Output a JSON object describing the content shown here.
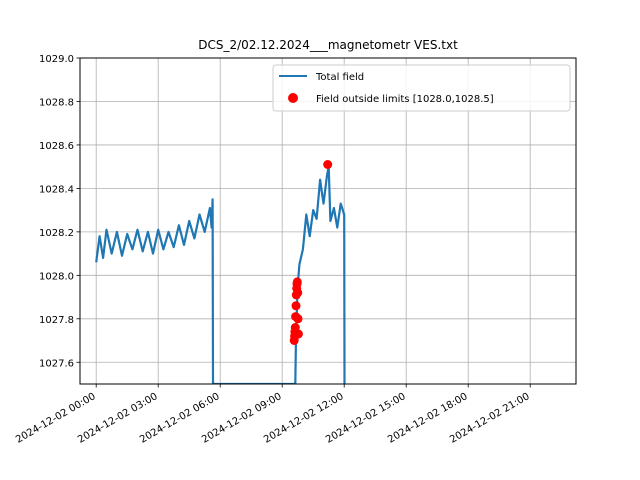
{
  "chart_data": {
    "type": "line",
    "title": "DCS_2/02.12.2024___magnetometr VES.txt",
    "xlabel": "",
    "ylabel": "",
    "xlim": [
      "2024-12-01 23:13",
      "2024-12-02 23:13"
    ],
    "ylim": [
      1027.5,
      1029.0
    ],
    "x_ticks": [
      "2024-12-02 00:00",
      "2024-12-02 03:00",
      "2024-12-02 06:00",
      "2024-12-02 09:00",
      "2024-12-02 12:00",
      "2024-12-02 15:00",
      "2024-12-02 18:00",
      "2024-12-02 21:00"
    ],
    "y_ticks": [
      "1027.6",
      "1027.8",
      "1028.0",
      "1028.2",
      "1028.4",
      "1028.6",
      "1028.8",
      "1029.0"
    ],
    "grid": true,
    "legend_position": "top-right",
    "series": [
      {
        "name": "Total field",
        "kind": "line",
        "color": "#1f77b4",
        "points": [
          [
            "2024-12-02 00:00",
            1028.06
          ],
          [
            "2024-12-02 00:10",
            1028.18
          ],
          [
            "2024-12-02 00:20",
            1028.08
          ],
          [
            "2024-12-02 00:30",
            1028.21
          ],
          [
            "2024-12-02 00:45",
            1028.1
          ],
          [
            "2024-12-02 01:00",
            1028.2
          ],
          [
            "2024-12-02 01:15",
            1028.09
          ],
          [
            "2024-12-02 01:30",
            1028.19
          ],
          [
            "2024-12-02 01:45",
            1028.12
          ],
          [
            "2024-12-02 02:00",
            1028.21
          ],
          [
            "2024-12-02 02:15",
            1028.11
          ],
          [
            "2024-12-02 02:30",
            1028.2
          ],
          [
            "2024-12-02 02:45",
            1028.1
          ],
          [
            "2024-12-02 03:00",
            1028.21
          ],
          [
            "2024-12-02 03:15",
            1028.12
          ],
          [
            "2024-12-02 03:30",
            1028.2
          ],
          [
            "2024-12-02 03:45",
            1028.13
          ],
          [
            "2024-12-02 04:00",
            1028.23
          ],
          [
            "2024-12-02 04:15",
            1028.14
          ],
          [
            "2024-12-02 04:30",
            1028.25
          ],
          [
            "2024-12-02 04:45",
            1028.17
          ],
          [
            "2024-12-02 05:00",
            1028.28
          ],
          [
            "2024-12-02 05:15",
            1028.2
          ],
          [
            "2024-12-02 05:30",
            1028.31
          ],
          [
            "2024-12-02 05:35",
            1028.22
          ],
          [
            "2024-12-02 05:38",
            1028.35
          ],
          [
            "2024-12-02 05:39",
            1027.5
          ],
          [
            "2024-12-02 09:38",
            1027.5
          ],
          [
            "2024-12-02 09:40",
            1027.72
          ],
          [
            "2024-12-02 09:45",
            1027.95
          ],
          [
            "2024-12-02 09:50",
            1028.05
          ],
          [
            "2024-12-02 10:00",
            1028.12
          ],
          [
            "2024-12-02 10:10",
            1028.28
          ],
          [
            "2024-12-02 10:20",
            1028.18
          ],
          [
            "2024-12-02 10:30",
            1028.3
          ],
          [
            "2024-12-02 10:40",
            1028.26
          ],
          [
            "2024-12-02 10:50",
            1028.44
          ],
          [
            "2024-12-02 11:00",
            1028.33
          ],
          [
            "2024-12-02 11:10",
            1028.46
          ],
          [
            "2024-12-02 11:15",
            1028.5
          ],
          [
            "2024-12-02 11:20",
            1028.25
          ],
          [
            "2024-12-02 11:30",
            1028.31
          ],
          [
            "2024-12-02 11:40",
            1028.22
          ],
          [
            "2024-12-02 11:50",
            1028.33
          ],
          [
            "2024-12-02 12:00",
            1028.28
          ],
          [
            "2024-12-02 12:01",
            1027.5
          ]
        ]
      },
      {
        "name": "Field outside limits [1028.0,1028.5]",
        "kind": "scatter",
        "color": "#ff0000",
        "points": [
          [
            "2024-12-02 09:35",
            1027.7
          ],
          [
            "2024-12-02 09:36",
            1027.72
          ],
          [
            "2024-12-02 09:37",
            1027.74
          ],
          [
            "2024-12-02 09:38",
            1027.76
          ],
          [
            "2024-12-02 09:39",
            1027.81
          ],
          [
            "2024-12-02 09:40",
            1027.86
          ],
          [
            "2024-12-02 09:41",
            1027.91
          ],
          [
            "2024-12-02 09:42",
            1027.94
          ],
          [
            "2024-12-02 09:43",
            1027.96
          ],
          [
            "2024-12-02 09:44",
            1027.97
          ],
          [
            "2024-12-02 09:45",
            1027.92
          ],
          [
            "2024-12-02 09:46",
            1027.8
          ],
          [
            "2024-12-02 09:47",
            1027.73
          ],
          [
            "2024-12-02 11:12",
            1028.51
          ]
        ]
      }
    ]
  }
}
